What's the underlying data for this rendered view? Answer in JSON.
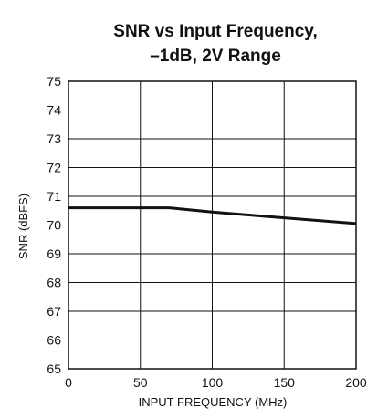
{
  "chart_data": {
    "type": "line",
    "title_lines": [
      "SNR vs Input Frequency,",
      "–1dB, 2V Range"
    ],
    "xlabel": "INPUT FREQUENCY (MHz)",
    "ylabel": "SNR (dBFS)",
    "xlim": [
      0,
      200
    ],
    "ylim": [
      65,
      75
    ],
    "xticks": [
      "0",
      "50",
      "100",
      "150",
      "200"
    ],
    "yticks": [
      "65",
      "66",
      "67",
      "68",
      "69",
      "70",
      "71",
      "72",
      "73",
      "74",
      "75"
    ],
    "grid": true,
    "series": [
      {
        "x": [
          0,
          70,
          100,
          150,
          200
        ],
        "y": [
          70.6,
          70.6,
          70.45,
          70.25,
          70.05
        ]
      }
    ],
    "colors": {
      "line": "#111111",
      "grid": "#111111"
    }
  }
}
